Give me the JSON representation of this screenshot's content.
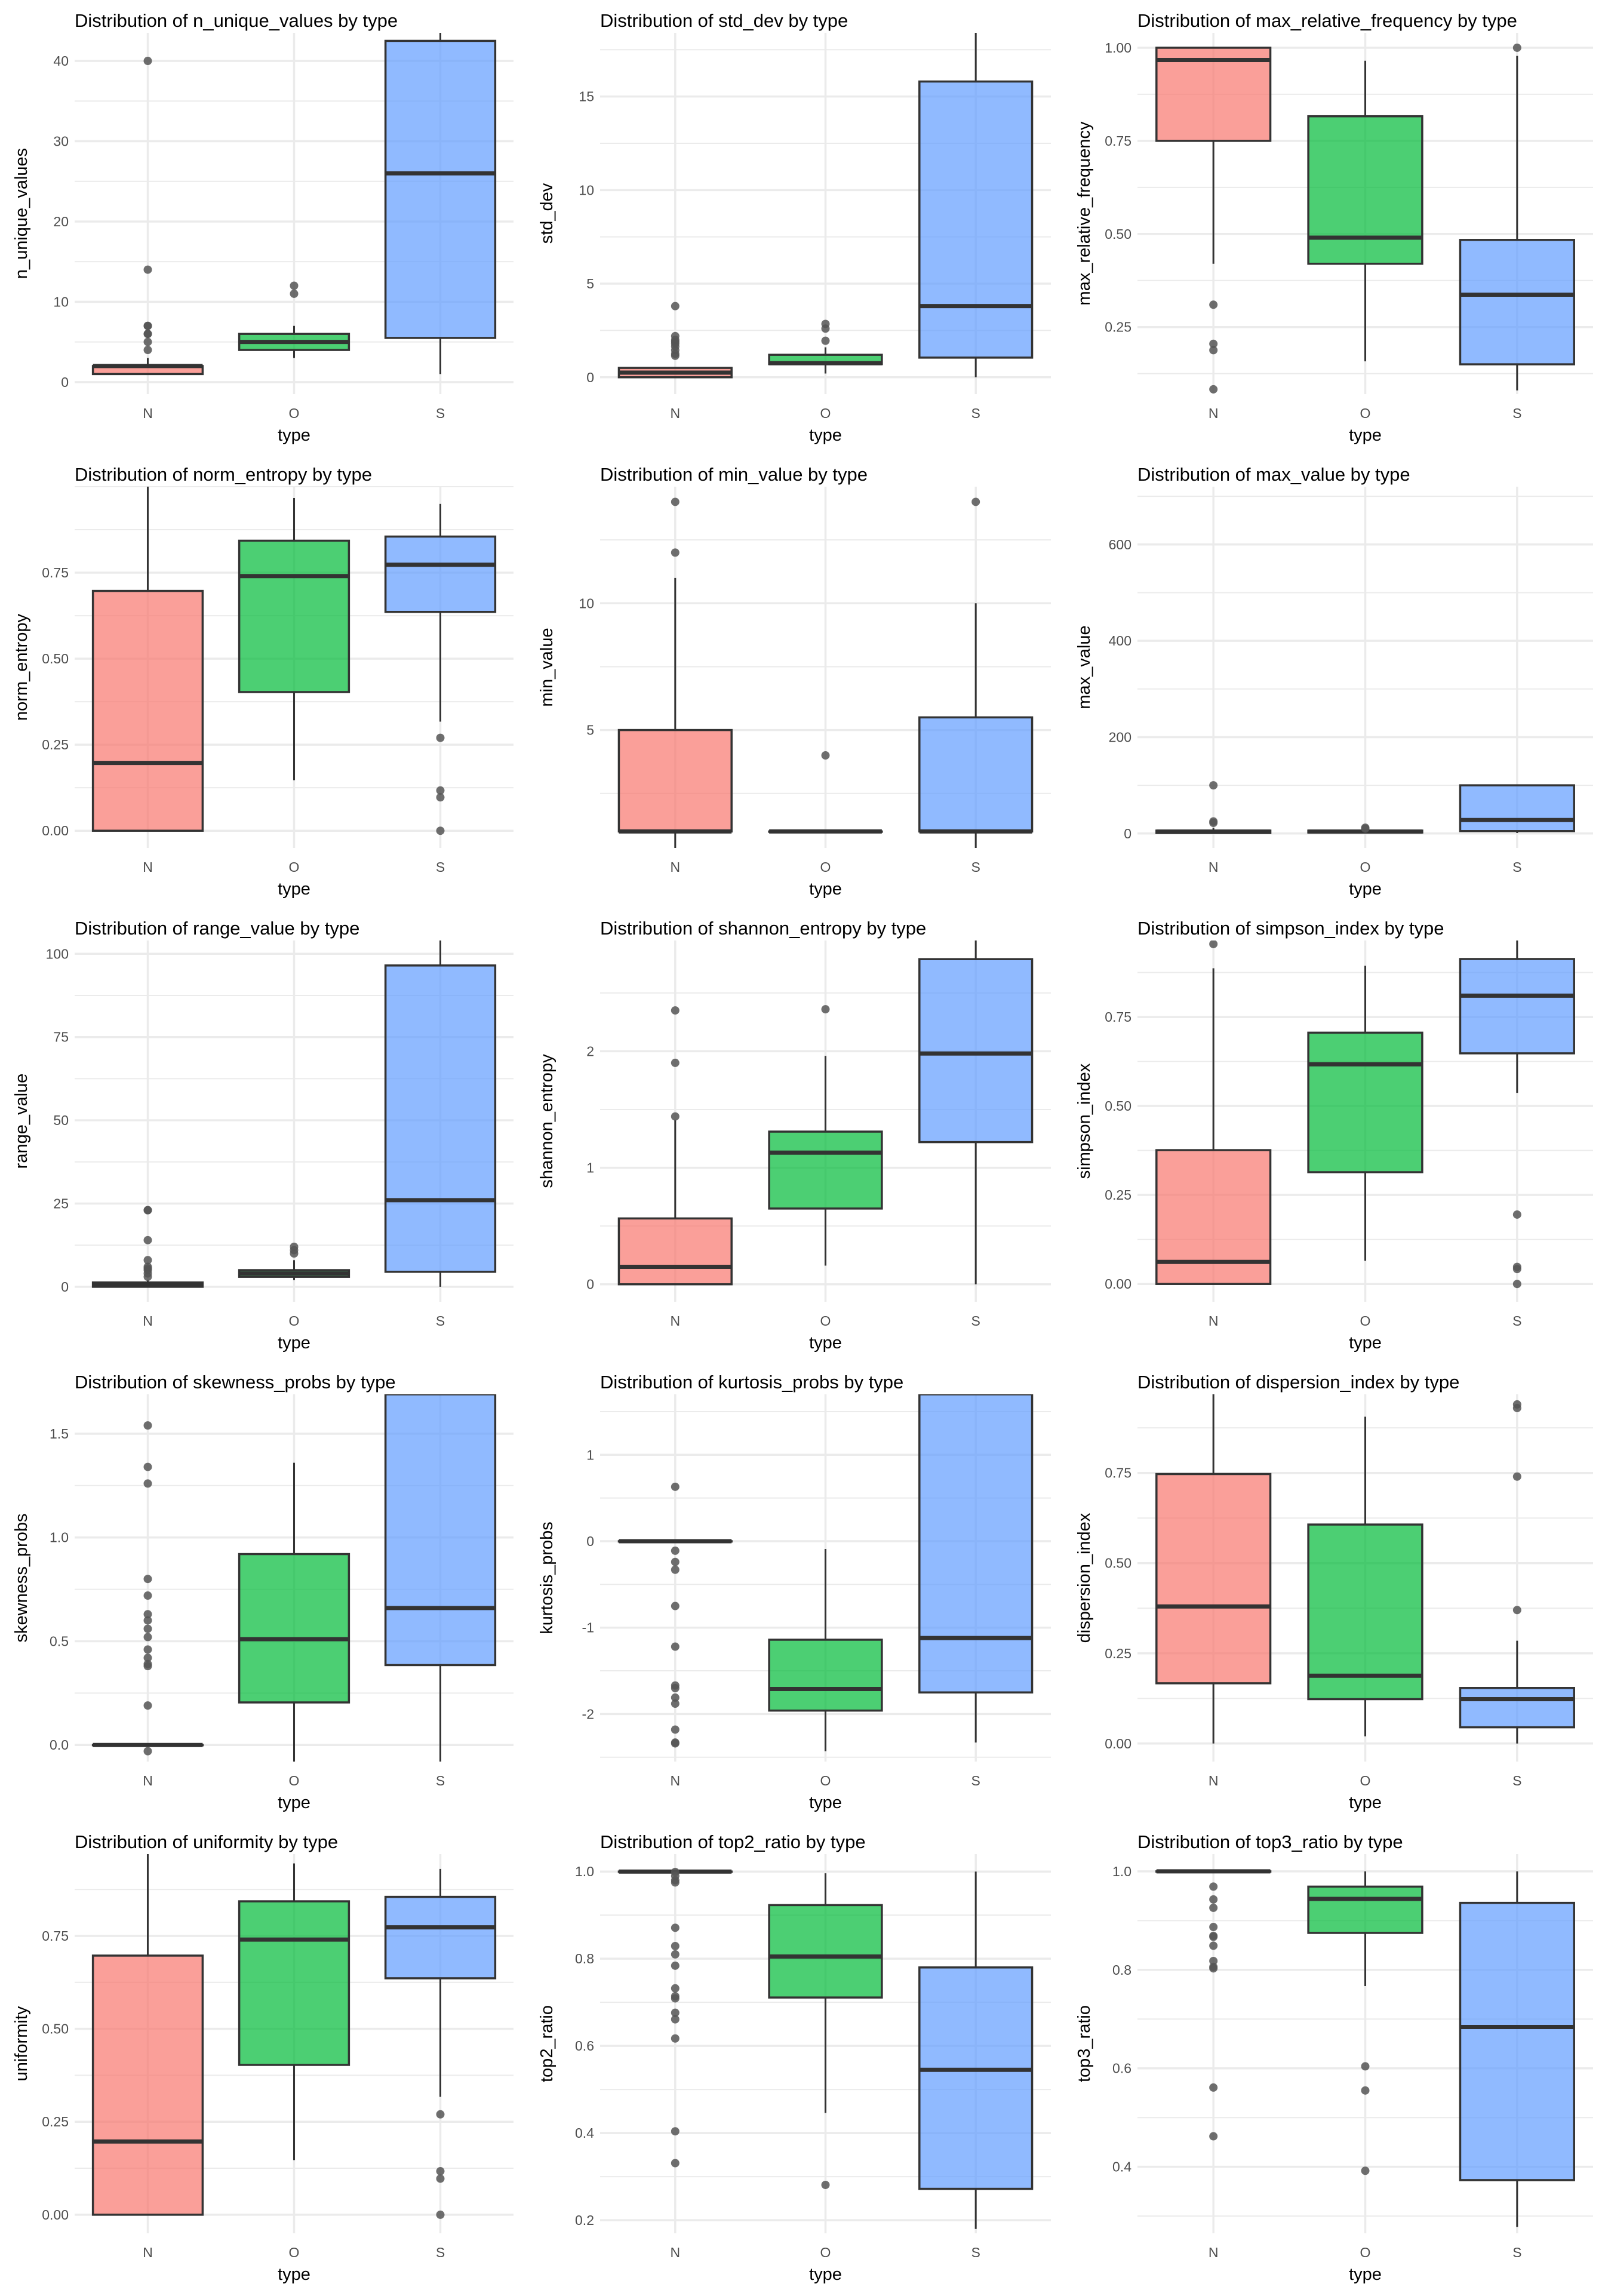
{
  "layout": {
    "rows": 5,
    "cols": 3
  },
  "colors": {
    "N": "#F8766D",
    "O": "#00BA38",
    "S": "#619CFF",
    "box_line": "#333333",
    "outlier": "#555555",
    "grid": "#EBEBEB",
    "tick_text": "#4D4D4D"
  },
  "chart_data": [
    {
      "type": "box",
      "title": "Distribution of n_unique_values by type",
      "xlabel": "type",
      "ylabel": "n_unique_values",
      "categories": [
        "N",
        "O",
        "S"
      ],
      "ylim": [
        -1.5,
        43.5
      ],
      "yticks": [
        0,
        10,
        20,
        30,
        40
      ],
      "yticklabels": [
        "0",
        "10",
        "20",
        "30",
        "40"
      ],
      "grid": true,
      "boxes": [
        {
          "cat": "N",
          "q1": 1,
          "median": 2,
          "q3": 2,
          "lower": 1,
          "upper": 3,
          "outliers": [
            4,
            5,
            6,
            6,
            7,
            7,
            14,
            40
          ]
        },
        {
          "cat": "O",
          "q1": 4,
          "median": 5,
          "q3": 6,
          "lower": 3,
          "upper": 7,
          "outliers": [
            11,
            12
          ]
        },
        {
          "cat": "S",
          "q1": 5.5,
          "median": 26,
          "q3": 42.5,
          "lower": 1,
          "upper": 43.5,
          "outliers": []
        }
      ]
    },
    {
      "type": "box",
      "title": "Distribution of std_dev by type",
      "xlabel": "type",
      "ylabel": "std_dev",
      "categories": [
        "N",
        "O",
        "S"
      ],
      "ylim": [
        -0.9,
        18.4
      ],
      "yticks": [
        0,
        5,
        10,
        15
      ],
      "yticklabels": [
        "0",
        "5",
        "10",
        "15"
      ],
      "grid": true,
      "boxes": [
        {
          "cat": "N",
          "q1": 0,
          "median": 0.25,
          "q3": 0.5,
          "lower": 0,
          "upper": 0.5,
          "outliers": [
            1.15,
            1.25,
            1.45,
            1.65,
            1.8,
            1.9,
            2.0,
            2.2,
            3.8
          ]
        },
        {
          "cat": "O",
          "q1": 0.7,
          "median": 0.75,
          "q3": 1.2,
          "lower": 0.2,
          "upper": 1.6,
          "outliers": [
            1.95,
            2.6,
            2.85
          ]
        },
        {
          "cat": "S",
          "q1": 1.05,
          "median": 3.8,
          "q3": 15.8,
          "lower": 0,
          "upper": 18.4,
          "outliers": []
        }
      ]
    },
    {
      "type": "box",
      "title": "Distribution of max_relative_frequency by type",
      "xlabel": "type",
      "ylabel": "max_relative_frequency",
      "categories": [
        "N",
        "O",
        "S"
      ],
      "ylim": [
        0.07,
        1.04
      ],
      "yticks": [
        0.25,
        0.5,
        0.75,
        1.0
      ],
      "yticklabels": [
        "0.25",
        "0.50",
        "0.75",
        "1.00"
      ],
      "grid": true,
      "boxes": [
        {
          "cat": "N",
          "q1": 0.75,
          "median": 0.967,
          "q3": 1.0,
          "lower": 0.42,
          "upper": 1.0,
          "outliers": [
            0.31,
            0.205,
            0.188,
            0.083
          ]
        },
        {
          "cat": "O",
          "q1": 0.42,
          "median": 0.49,
          "q3": 0.816,
          "lower": 0.158,
          "upper": 0.965,
          "outliers": []
        },
        {
          "cat": "S",
          "q1": 0.15,
          "median": 0.337,
          "q3": 0.484,
          "lower": 0.08,
          "upper": 0.978,
          "outliers": [
            1.0
          ]
        }
      ]
    },
    {
      "type": "box",
      "title": "Distribution of norm_entropy by type",
      "xlabel": "type",
      "ylabel": "norm_entropy",
      "categories": [
        "N",
        "O",
        "S"
      ],
      "ylim": [
        -0.05,
        1.0
      ],
      "yticks": [
        0,
        0.25,
        0.5,
        0.75
      ],
      "yticklabels": [
        "0.00",
        "0.25",
        "0.50",
        "0.75"
      ],
      "grid": true,
      "boxes": [
        {
          "cat": "N",
          "q1": 0,
          "median": 0.197,
          "q3": 0.697,
          "lower": 0,
          "upper": 1.0,
          "outliers": []
        },
        {
          "cat": "O",
          "q1": 0.403,
          "median": 0.74,
          "q3": 0.843,
          "lower": 0.147,
          "upper": 0.967,
          "outliers": []
        },
        {
          "cat": "S",
          "q1": 0.636,
          "median": 0.773,
          "q3": 0.855,
          "lower": 0.317,
          "upper": 0.95,
          "outliers": [
            0.27,
            0.117,
            0.097,
            0
          ]
        }
      ]
    },
    {
      "type": "box",
      "title": "Distribution of min_value by type",
      "xlabel": "type",
      "ylabel": "min_value",
      "categories": [
        "N",
        "O",
        "S"
      ],
      "ylim": [
        0.35,
        14.6
      ],
      "yticks": [
        5,
        10
      ],
      "yticklabels": [
        "5",
        "10"
      ],
      "grid": true,
      "boxes": [
        {
          "cat": "N",
          "q1": 1,
          "median": 1,
          "q3": 5,
          "lower": 0.35,
          "upper": 11,
          "outliers": [
            12,
            14
          ]
        },
        {
          "cat": "O",
          "q1": 1,
          "median": 1,
          "q3": 1,
          "lower": 1,
          "upper": 1,
          "outliers": [
            4
          ]
        },
        {
          "cat": "S",
          "q1": 1,
          "median": 1,
          "q3": 5.5,
          "lower": 0.35,
          "upper": 10,
          "outliers": [
            14
          ]
        }
      ]
    },
    {
      "type": "box",
      "title": "Distribution of max_value by type",
      "xlabel": "type",
      "ylabel": "max_value",
      "categories": [
        "N",
        "O",
        "S"
      ],
      "ylim": [
        -30,
        720
      ],
      "yticks": [
        0,
        200,
        400,
        600
      ],
      "yticklabels": [
        "0",
        "200",
        "400",
        "600"
      ],
      "grid": true,
      "boxes": [
        {
          "cat": "N",
          "q1": 1,
          "median": 4,
          "q3": 6,
          "lower": 1,
          "upper": 12,
          "outliers": [
            22,
            25,
            100
          ]
        },
        {
          "cat": "O",
          "q1": 2,
          "median": 4,
          "q3": 6,
          "lower": 2,
          "upper": 8,
          "outliers": [
            10,
            12
          ]
        },
        {
          "cat": "S",
          "q1": 5,
          "median": 28,
          "q3": 100,
          "lower": 1,
          "upper": 100,
          "outliers": []
        }
      ]
    },
    {
      "type": "box",
      "title": "Distribution of range_value by type",
      "xlabel": "type",
      "ylabel": "range_value",
      "categories": [
        "N",
        "O",
        "S"
      ],
      "ylim": [
        -4.5,
        104
      ],
      "yticks": [
        0,
        25,
        50,
        75,
        100
      ],
      "yticklabels": [
        "0",
        "25",
        "50",
        "75",
        "100"
      ],
      "grid": true,
      "boxes": [
        {
          "cat": "N",
          "q1": 0,
          "median": 0.5,
          "q3": 1.3,
          "lower": 0,
          "upper": 2,
          "outliers": [
            3,
            4,
            5,
            5.5,
            6,
            8,
            14,
            23,
            23
          ]
        },
        {
          "cat": "O",
          "q1": 3,
          "median": 4,
          "q3": 5,
          "lower": 2,
          "upper": 8,
          "outliers": [
            10,
            11,
            12
          ]
        },
        {
          "cat": "S",
          "q1": 4.5,
          "median": 26,
          "q3": 96.5,
          "lower": 0,
          "upper": 104,
          "outliers": []
        }
      ]
    },
    {
      "type": "box",
      "title": "Distribution of shannon_entropy by type",
      "xlabel": "type",
      "ylabel": "shannon_entropy",
      "categories": [
        "N",
        "O",
        "S"
      ],
      "ylim": [
        -0.15,
        2.95
      ],
      "yticks": [
        0,
        1,
        2
      ],
      "yticklabels": [
        "0",
        "1",
        "2"
      ],
      "grid": true,
      "boxes": [
        {
          "cat": "N",
          "q1": 0,
          "median": 0.15,
          "q3": 0.565,
          "lower": 0,
          "upper": 1.41,
          "outliers": [
            1.44,
            1.9,
            2.35
          ]
        },
        {
          "cat": "O",
          "q1": 0.65,
          "median": 1.13,
          "q3": 1.31,
          "lower": 0.16,
          "upper": 1.96,
          "outliers": [
            2.36
          ]
        },
        {
          "cat": "S",
          "q1": 1.22,
          "median": 1.98,
          "q3": 2.79,
          "lower": 0,
          "upper": 2.95,
          "outliers": []
        }
      ]
    },
    {
      "type": "box",
      "title": "Distribution of simpson_index by type",
      "xlabel": "type",
      "ylabel": "simpson_index",
      "categories": [
        "N",
        "O",
        "S"
      ],
      "ylim": [
        -0.05,
        0.965
      ],
      "yticks": [
        0,
        0.25,
        0.5,
        0.75
      ],
      "yticklabels": [
        "0.00",
        "0.25",
        "0.50",
        "0.75"
      ],
      "grid": true,
      "boxes": [
        {
          "cat": "N",
          "q1": 0,
          "median": 0.062,
          "q3": 0.376,
          "lower": 0,
          "upper": 0.887,
          "outliers": [
            0.955
          ]
        },
        {
          "cat": "O",
          "q1": 0.314,
          "median": 0.617,
          "q3": 0.706,
          "lower": 0.065,
          "upper": 0.894,
          "outliers": []
        },
        {
          "cat": "S",
          "q1": 0.648,
          "median": 0.81,
          "q3": 0.913,
          "lower": 0.537,
          "upper": 0.965,
          "outliers": [
            0.195,
            0.048,
            0.042,
            0
          ]
        }
      ]
    },
    {
      "type": "box",
      "title": "Distribution of skewness_probs by type",
      "xlabel": "type",
      "ylabel": "skewness_probs",
      "categories": [
        "N",
        "O",
        "S"
      ],
      "ylim": [
        -0.08,
        1.69
      ],
      "yticks": [
        0,
        0.5,
        1.0,
        1.5
      ],
      "yticklabels": [
        "0.0",
        "0.5",
        "1.0",
        "1.5"
      ],
      "grid": true,
      "boxes": [
        {
          "cat": "N",
          "q1": 0,
          "median": 0,
          "q3": 0,
          "lower": 0,
          "upper": 0,
          "outliers": [
            -0.03,
            0.19,
            0.38,
            0.39,
            0.42,
            0.46,
            0.52,
            0.56,
            0.6,
            0.63,
            0.72,
            0.8,
            1.26,
            1.34,
            1.54
          ]
        },
        {
          "cat": "O",
          "q1": 0.205,
          "median": 0.51,
          "q3": 0.92,
          "lower": -0.08,
          "upper": 1.36,
          "outliers": []
        },
        {
          "cat": "S",
          "q1": 0.385,
          "median": 0.66,
          "q3": 1.69,
          "lower": -0.08,
          "upper": 1.69,
          "outliers": []
        }
      ]
    },
    {
      "type": "box",
      "title": "Distribution of kurtosis_probs by type",
      "xlabel": "type",
      "ylabel": "kurtosis_probs",
      "categories": [
        "N",
        "O",
        "S"
      ],
      "ylim": [
        -2.55,
        1.7
      ],
      "yticks": [
        -2,
        -1,
        0,
        1
      ],
      "yticklabels": [
        "-2",
        "-1",
        "0",
        "1"
      ],
      "grid": true,
      "boxes": [
        {
          "cat": "N",
          "q1": 0,
          "median": 0,
          "q3": 0,
          "lower": 0,
          "upper": 0,
          "outliers": [
            0.63,
            -0.11,
            -0.24,
            -0.33,
            -0.75,
            -1.22,
            -1.67,
            -1.7,
            -1.81,
            -1.88,
            -2.18,
            -2.33,
            -2.34
          ]
        },
        {
          "cat": "O",
          "q1": -1.96,
          "median": -1.71,
          "q3": -1.14,
          "lower": -2.43,
          "upper": -0.09,
          "outliers": []
        },
        {
          "cat": "S",
          "q1": -1.75,
          "median": -1.12,
          "q3": 1.7,
          "lower": -2.33,
          "upper": 1.7,
          "outliers": []
        }
      ]
    },
    {
      "type": "box",
      "title": "Distribution of dispersion_index by type",
      "xlabel": "type",
      "ylabel": "dispersion_index",
      "categories": [
        "N",
        "O",
        "S"
      ],
      "ylim": [
        -0.05,
        0.968
      ],
      "yticks": [
        0,
        0.25,
        0.5,
        0.75
      ],
      "yticklabels": [
        "0.00",
        "0.25",
        "0.50",
        "0.75"
      ],
      "grid": true,
      "boxes": [
        {
          "cat": "N",
          "q1": 0.167,
          "median": 0.38,
          "q3": 0.747,
          "lower": 0,
          "upper": 0.968,
          "outliers": []
        },
        {
          "cat": "O",
          "q1": 0.123,
          "median": 0.188,
          "q3": 0.607,
          "lower": 0.02,
          "upper": 0.906,
          "outliers": []
        },
        {
          "cat": "S",
          "q1": 0.045,
          "median": 0.123,
          "q3": 0.154,
          "lower": 0,
          "upper": 0.285,
          "outliers": [
            0.37,
            0.74,
            0.93,
            0.94
          ]
        }
      ]
    },
    {
      "type": "box",
      "title": "Distribution of uniformity by type",
      "xlabel": "type",
      "ylabel": "uniformity",
      "categories": [
        "N",
        "O",
        "S"
      ],
      "ylim": [
        -0.05,
        0.97
      ],
      "yticks": [
        0,
        0.25,
        0.5,
        0.75
      ],
      "yticklabels": [
        "0.00",
        "0.25",
        "0.50",
        "0.75"
      ],
      "grid": true,
      "boxes": [
        {
          "cat": "N",
          "q1": 0,
          "median": 0.197,
          "q3": 0.697,
          "lower": 0,
          "upper": 0.97,
          "outliers": []
        },
        {
          "cat": "O",
          "q1": 0.403,
          "median": 0.74,
          "q3": 0.843,
          "lower": 0.147,
          "upper": 0.945,
          "outliers": []
        },
        {
          "cat": "S",
          "q1": 0.636,
          "median": 0.773,
          "q3": 0.855,
          "lower": 0.317,
          "upper": 0.93,
          "outliers": [
            0.27,
            0.117,
            0.097,
            0
          ]
        }
      ]
    },
    {
      "type": "box",
      "title": "Distribution of top2_ratio by type",
      "xlabel": "type",
      "ylabel": "top2_ratio",
      "categories": [
        "N",
        "O",
        "S"
      ],
      "ylim": [
        0.17,
        1.04
      ],
      "yticks": [
        0.2,
        0.4,
        0.6,
        0.8,
        1.0
      ],
      "yticklabels": [
        "0.2",
        "0.4",
        "0.6",
        "0.8",
        "1.0"
      ],
      "grid": true,
      "boxes": [
        {
          "cat": "N",
          "q1": 1.0,
          "median": 1.0,
          "q3": 1.0,
          "lower": 1.0,
          "upper": 1.0,
          "outliers": [
            0.999,
            0.99,
            0.98,
            0.975,
            0.871,
            0.829,
            0.81,
            0.784,
            0.732,
            0.714,
            0.709,
            0.676,
            0.661,
            0.617,
            0.404,
            0.331
          ]
        },
        {
          "cat": "O",
          "q1": 0.711,
          "median": 0.805,
          "q3": 0.923,
          "lower": 0.446,
          "upper": 0.996,
          "outliers": [
            0.281
          ]
        },
        {
          "cat": "S",
          "q1": 0.272,
          "median": 0.545,
          "q3": 0.78,
          "lower": 0.18,
          "upper": 1.0,
          "outliers": []
        }
      ]
    },
    {
      "type": "box",
      "title": "Distribution of top3_ratio by type",
      "xlabel": "type",
      "ylabel": "top3_ratio",
      "categories": [
        "N",
        "O",
        "S"
      ],
      "ylim": [
        0.265,
        1.035
      ],
      "yticks": [
        0.4,
        0.6,
        0.8,
        1.0
      ],
      "yticklabels": [
        "0.4",
        "0.6",
        "0.8",
        "1.0"
      ],
      "grid": true,
      "boxes": [
        {
          "cat": "N",
          "q1": 1.0,
          "median": 1.0,
          "q3": 1.0,
          "lower": 1.0,
          "upper": 1.0,
          "outliers": [
            0.969,
            0.943,
            0.926,
            0.887,
            0.869,
            0.867,
            0.849,
            0.818,
            0.806,
            0.803,
            0.561,
            0.462
          ]
        },
        {
          "cat": "O",
          "q1": 0.875,
          "median": 0.944,
          "q3": 0.969,
          "lower": 0.767,
          "upper": 1.0,
          "outliers": [
            0.604,
            0.555,
            0.392
          ]
        },
        {
          "cat": "S",
          "q1": 0.373,
          "median": 0.684,
          "q3": 0.936,
          "lower": 0.278,
          "upper": 1.0,
          "outliers": []
        }
      ]
    }
  ]
}
